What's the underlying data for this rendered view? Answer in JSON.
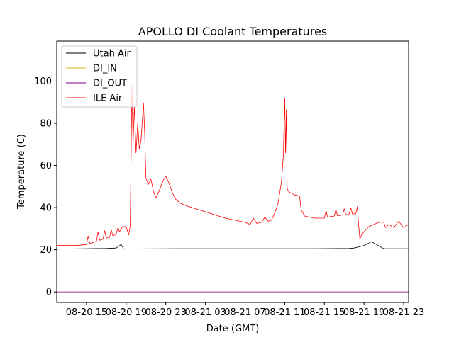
{
  "chart_data": {
    "type": "line",
    "title": "APOLLO DI Coolant Temperatures",
    "xlabel": "Date (GMT)",
    "ylabel": "Temperature (C)",
    "xlim": [
      "2020-08-20T12:00",
      "2020-08-21T23:30"
    ],
    "ylim": [
      -5,
      119
    ],
    "x_ticks": [
      {
        "label": "08-20 15",
        "t": "2020-08-20T15:00"
      },
      {
        "label": "08-20 19",
        "t": "2020-08-20T19:00"
      },
      {
        "label": "08-20 23",
        "t": "2020-08-20T23:00"
      },
      {
        "label": "08-21 03",
        "t": "2020-08-21T03:00"
      },
      {
        "label": "08-21 07",
        "t": "2020-08-21T07:00"
      },
      {
        "label": "08-21 11",
        "t": "2020-08-21T11:00"
      },
      {
        "label": "08-21 15",
        "t": "2020-08-21T15:00"
      },
      {
        "label": "08-21 19",
        "t": "2020-08-21T19:00"
      },
      {
        "label": "08-21 23",
        "t": "2020-08-21T23:00"
      }
    ],
    "y_ticks": [
      0,
      20,
      40,
      60,
      80,
      100
    ],
    "legend_position": "upper-left",
    "grid": false,
    "series": [
      {
        "name": "Utah Air",
        "color": "#000000",
        "points": [
          [
            "2020-08-20T12:00",
            20.3
          ],
          [
            "2020-08-20T15:00",
            20.5
          ],
          [
            "2020-08-20T17:00",
            20.6
          ],
          [
            "2020-08-20T18:00",
            20.8
          ],
          [
            "2020-08-20T18:30",
            22.5
          ],
          [
            "2020-08-20T18:45",
            20.4
          ],
          [
            "2020-08-20T20:00",
            20.4
          ],
          [
            "2020-08-21T00:00",
            20.5
          ],
          [
            "2020-08-21T06:00",
            20.5
          ],
          [
            "2020-08-21T10:00",
            20.5
          ],
          [
            "2020-08-21T14:00",
            20.5
          ],
          [
            "2020-08-21T17:30",
            20.6
          ],
          [
            "2020-08-21T18:00",
            20.8
          ],
          [
            "2020-08-21T19:00",
            22.0
          ],
          [
            "2020-08-21T19:45",
            23.8
          ],
          [
            "2020-08-21T20:30",
            21.8
          ],
          [
            "2020-08-21T21:00",
            20.5
          ],
          [
            "2020-08-21T23:30",
            20.5
          ]
        ]
      },
      {
        "name": "DI_IN",
        "color": "#dcb11c",
        "points": [
          [
            "2020-08-20T12:00",
            0
          ],
          [
            "2020-08-21T23:30",
            0
          ]
        ]
      },
      {
        "name": "DI_OUT",
        "color": "#800080",
        "points": [
          [
            "2020-08-20T12:00",
            0
          ],
          [
            "2020-08-21T23:30",
            0
          ]
        ]
      },
      {
        "name": "ILE Air",
        "color": "#ff0000",
        "points": [
          [
            "2020-08-20T12:00",
            22.0
          ],
          [
            "2020-08-20T14:00",
            22.0
          ],
          [
            "2020-08-20T15:00",
            22.5
          ],
          [
            "2020-08-20T15:10",
            26.5
          ],
          [
            "2020-08-20T15:20",
            23.0
          ],
          [
            "2020-08-20T16:00",
            24.0
          ],
          [
            "2020-08-20T16:10",
            28.5
          ],
          [
            "2020-08-20T16:20",
            24.5
          ],
          [
            "2020-08-20T16:40",
            25.0
          ],
          [
            "2020-08-20T16:50",
            29.0
          ],
          [
            "2020-08-20T17:00",
            25.5
          ],
          [
            "2020-08-20T17:20",
            26.0
          ],
          [
            "2020-08-20T17:30",
            29.5
          ],
          [
            "2020-08-20T17:40",
            26.5
          ],
          [
            "2020-08-20T18:00",
            27.5
          ],
          [
            "2020-08-20T18:10",
            30.5
          ],
          [
            "2020-08-20T18:20",
            28.5
          ],
          [
            "2020-08-20T18:40",
            31.0
          ],
          [
            "2020-08-20T19:00",
            31.0
          ],
          [
            "2020-08-20T19:15",
            27.0
          ],
          [
            "2020-08-20T19:25",
            31.5
          ],
          [
            "2020-08-20T19:35",
            97.5
          ],
          [
            "2020-08-20T19:42",
            70.0
          ],
          [
            "2020-08-20T19:50",
            88.0
          ],
          [
            "2020-08-20T20:00",
            66.0
          ],
          [
            "2020-08-20T20:10",
            80.0
          ],
          [
            "2020-08-20T20:20",
            68.0
          ],
          [
            "2020-08-20T20:30",
            72.0
          ],
          [
            "2020-08-20T20:45",
            89.5
          ],
          [
            "2020-08-20T20:52",
            76.0
          ],
          [
            "2020-08-20T21:00",
            54.0
          ],
          [
            "2020-08-20T21:15",
            51.0
          ],
          [
            "2020-08-20T21:30",
            53.5
          ],
          [
            "2020-08-20T21:45",
            48.0
          ],
          [
            "2020-08-20T22:00",
            44.5
          ],
          [
            "2020-08-20T22:15",
            47.0
          ],
          [
            "2020-08-20T22:30",
            50.0
          ],
          [
            "2020-08-20T22:45",
            53.0
          ],
          [
            "2020-08-20T23:00",
            55.0
          ],
          [
            "2020-08-20T23:20",
            51.5
          ],
          [
            "2020-08-20T23:40",
            47.0
          ],
          [
            "2020-08-21T00:00",
            44.0
          ],
          [
            "2020-08-21T00:30",
            42.0
          ],
          [
            "2020-08-21T01:00",
            41.0
          ],
          [
            "2020-08-21T02:00",
            39.5
          ],
          [
            "2020-08-21T03:00",
            38.0
          ],
          [
            "2020-08-21T04:00",
            36.5
          ],
          [
            "2020-08-21T05:00",
            35.0
          ],
          [
            "2020-08-21T06:00",
            34.0
          ],
          [
            "2020-08-21T07:00",
            33.0
          ],
          [
            "2020-08-21T07:30",
            32.0
          ],
          [
            "2020-08-21T07:50",
            35.0
          ],
          [
            "2020-08-21T08:10",
            32.5
          ],
          [
            "2020-08-21T08:40",
            33.0
          ],
          [
            "2020-08-21T09:00",
            35.5
          ],
          [
            "2020-08-21T09:20",
            33.5
          ],
          [
            "2020-08-21T09:40",
            34.0
          ],
          [
            "2020-08-21T10:00",
            37.5
          ],
          [
            "2020-08-21T10:20",
            42.0
          ],
          [
            "2020-08-21T10:40",
            52.0
          ],
          [
            "2020-08-21T10:52",
            65.0
          ],
          [
            "2020-08-21T11:00",
            92.0
          ],
          [
            "2020-08-21T11:05",
            66.0
          ],
          [
            "2020-08-21T11:10",
            86.5
          ],
          [
            "2020-08-21T11:15",
            49.0
          ],
          [
            "2020-08-21T11:25",
            47.5
          ],
          [
            "2020-08-21T12:00",
            46.0
          ],
          [
            "2020-08-21T12:30",
            45.5
          ],
          [
            "2020-08-21T12:40",
            39.0
          ],
          [
            "2020-08-21T13:00",
            36.0
          ],
          [
            "2020-08-21T14:00",
            35.0
          ],
          [
            "2020-08-21T15:00",
            35.0
          ],
          [
            "2020-08-21T15:10",
            38.5
          ],
          [
            "2020-08-21T15:20",
            35.5
          ],
          [
            "2020-08-21T16:00",
            36.0
          ],
          [
            "2020-08-21T16:10",
            39.0
          ],
          [
            "2020-08-21T16:20",
            36.0
          ],
          [
            "2020-08-21T16:50",
            36.5
          ],
          [
            "2020-08-21T17:00",
            39.5
          ],
          [
            "2020-08-21T17:10",
            36.5
          ],
          [
            "2020-08-21T17:30",
            37.0
          ],
          [
            "2020-08-21T17:40",
            40.0
          ],
          [
            "2020-08-21T17:50",
            37.0
          ],
          [
            "2020-08-21T18:10",
            37.0
          ],
          [
            "2020-08-21T18:20",
            40.5
          ],
          [
            "2020-08-21T18:25",
            34.0
          ],
          [
            "2020-08-21T18:35",
            25.0
          ],
          [
            "2020-08-21T18:45",
            27.0
          ],
          [
            "2020-08-21T19:00",
            28.5
          ],
          [
            "2020-08-21T19:30",
            31.0
          ],
          [
            "2020-08-21T20:30",
            33.0
          ],
          [
            "2020-08-21T21:00",
            33.0
          ],
          [
            "2020-08-21T21:10",
            30.5
          ],
          [
            "2020-08-21T21:30",
            32.0
          ],
          [
            "2020-08-21T22:00",
            30.5
          ],
          [
            "2020-08-21T22:30",
            33.5
          ],
          [
            "2020-08-21T23:00",
            30.5
          ],
          [
            "2020-08-21T23:30",
            32.0
          ]
        ]
      }
    ]
  }
}
